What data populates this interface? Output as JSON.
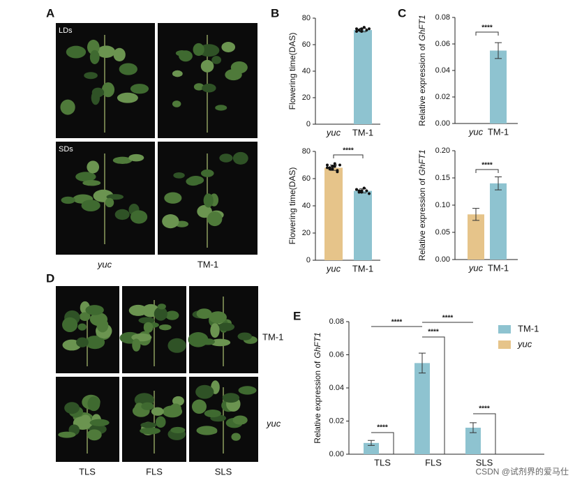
{
  "panel_labels": [
    "A",
    "B",
    "C",
    "D",
    "E"
  ],
  "photo_a": {
    "rows": [
      "LDs",
      "SDs"
    ],
    "columns": [
      "yuc",
      "TM-1"
    ],
    "column_styles": [
      "italic",
      "normal"
    ]
  },
  "photo_d": {
    "rows": [
      "TM-1",
      "yuc"
    ],
    "row_styles": [
      "normal",
      "italic"
    ],
    "columns": [
      "TLS",
      "FLS",
      "SLS"
    ]
  },
  "watermark": "CSDN @试剂界的爱马仕",
  "chart_data": [
    {
      "type": "bar",
      "ylabel": "Flowering time(DAS)",
      "categories": [
        "yuc",
        "TM-1"
      ],
      "category_styles": [
        "italic",
        "normal"
      ],
      "values": [
        null,
        71
      ],
      "errors": [
        null,
        1.3
      ],
      "colors": [
        "#e6c48a",
        "#8ec3d0"
      ],
      "points": [
        [],
        [
          72,
          71,
          70,
          73,
          71,
          72,
          70,
          71,
          72,
          73
        ]
      ],
      "ylim": [
        0,
        80
      ],
      "yticks": [
        0,
        20,
        40,
        60,
        80
      ]
    },
    {
      "type": "bar",
      "ylabel": "Flowering time(DAS)",
      "categories": [
        "yuc",
        "TM-1"
      ],
      "category_styles": [
        "italic",
        "normal"
      ],
      "values": [
        68,
        51
      ],
      "errors": [
        2,
        1.5
      ],
      "colors": [
        "#e6c48a",
        "#8ec3d0"
      ],
      "points": [
        [
          70,
          68,
          67,
          69,
          66,
          70,
          68,
          67,
          69,
          71,
          65
        ],
        [
          52,
          51,
          50,
          53,
          51,
          49,
          52,
          50,
          51,
          53
        ]
      ],
      "significance": "****",
      "ylim": [
        0,
        80
      ],
      "yticks": [
        0,
        20,
        40,
        60,
        80
      ]
    },
    {
      "type": "bar",
      "ylabel": "Relative expression of",
      "ylabel_italic": "GhFT1",
      "categories": [
        "yuc",
        "TM-1"
      ],
      "category_styles": [
        "italic",
        "normal"
      ],
      "values": [
        null,
        0.055
      ],
      "errors": [
        null,
        0.006
      ],
      "colors": [
        "#e6c48a",
        "#8ec3d0"
      ],
      "significance": "****",
      "ylim": [
        0,
        0.08
      ],
      "yticks": [
        {
          "value": 0,
          "label": "0.00"
        },
        0.02,
        0.04,
        0.06,
        0.08
      ]
    },
    {
      "type": "bar",
      "ylabel": "Relative expression of",
      "ylabel_italic": "GhFT1",
      "categories": [
        "yuc",
        "TM-1"
      ],
      "category_styles": [
        "italic",
        "normal"
      ],
      "values": [
        0.083,
        0.14
      ],
      "errors": [
        0.011,
        0.012
      ],
      "colors": [
        "#e6c48a",
        "#8ec3d0"
      ],
      "significance": "****",
      "ylim": [
        0,
        0.2
      ],
      "yticks": [
        {
          "value": 0,
          "label": "0.00"
        },
        0.05,
        {
          "value": 0.1,
          "label": "0.10"
        },
        0.15,
        {
          "value": 0.2,
          "label": "0.20"
        }
      ]
    },
    {
      "type": "grouped_bar",
      "ylabel": "Relative expression of",
      "ylabel_italic": "GhFT1",
      "categories": [
        "TLS",
        "FLS",
        "SLS"
      ],
      "series": [
        {
          "name": "TM-1",
          "color": "#8ec3d0",
          "style": "normal",
          "values": [
            0.0068,
            0.055,
            0.016
          ],
          "errors": [
            0.0015,
            0.006,
            0.003
          ]
        },
        {
          "name": "yuc",
          "color": "#e6c48a",
          "style": "italic",
          "values": [
            0,
            0,
            0
          ],
          "errors": [
            0,
            0,
            0
          ]
        }
      ],
      "annotations": [
        "****",
        "****",
        "****",
        "****",
        "****"
      ],
      "ylim": [
        0,
        0.08
      ],
      "yticks": [
        {
          "value": 0,
          "label": "0.00"
        },
        0.02,
        0.04,
        0.06,
        0.08
      ]
    }
  ]
}
